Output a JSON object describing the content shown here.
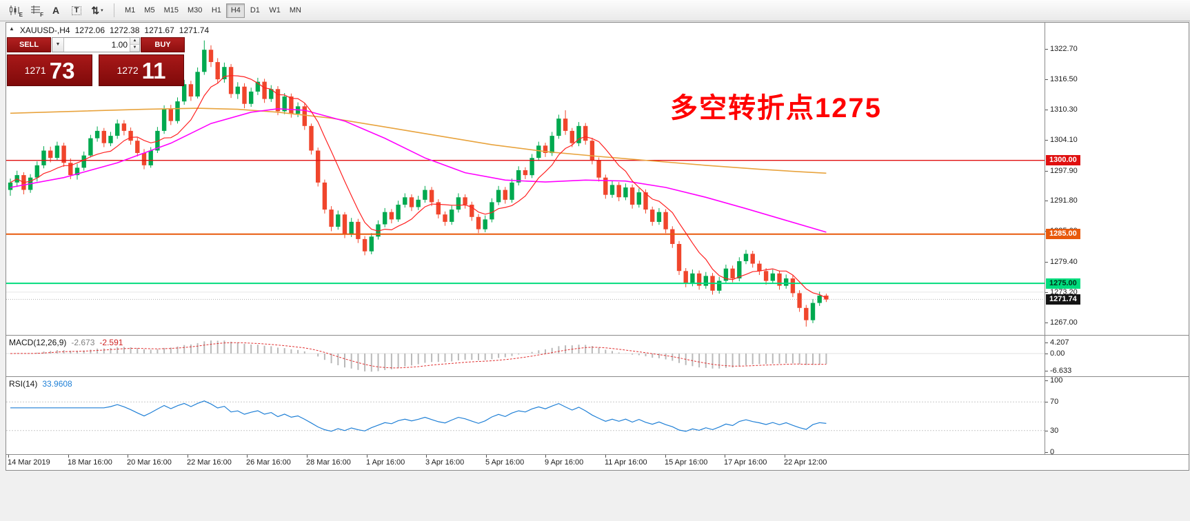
{
  "toolbar": {
    "icons": [
      {
        "name": "candlestick-chart-icon",
        "badge": "E"
      },
      {
        "name": "indicator-grid-icon",
        "badge": "F"
      },
      {
        "name": "text-label-icon",
        "glyph": "A"
      },
      {
        "name": "text-box-icon",
        "glyph": "T"
      },
      {
        "name": "cursor-tool-icon",
        "glyph": "⇅",
        "caret": "▾"
      }
    ],
    "timeframes": [
      "M1",
      "M5",
      "M15",
      "M30",
      "H1",
      "H4",
      "D1",
      "W1",
      "MN"
    ],
    "active_timeframe": "H4"
  },
  "chart_header": {
    "collapse_glyph": "▲",
    "symbol": "XAUUSD-,H4",
    "open": "1272.06",
    "high": "1272.38",
    "low": "1271.67",
    "close": "1271.74"
  },
  "trade_panel": {
    "sell_label": "SELL",
    "buy_label": "BUY",
    "volume": "1.00",
    "dropdown_glyph": "▼",
    "spinner_up": "▲",
    "spinner_down": "▼",
    "sell_price": {
      "small": "1271",
      "big": "73"
    },
    "buy_price": {
      "small": "1272",
      "big": "11"
    }
  },
  "annotation": {
    "text": "多空转折点1275",
    "color": "#ff0000"
  },
  "chart_data": {
    "type": "candlestick",
    "symbol": "XAUUSD",
    "timeframe": "H4",
    "title": "XAUUSD-,H4 1272.06 1272.38 1271.67 1271.74",
    "colors": {
      "bull": "#00a94f",
      "bear": "#f0452c",
      "ma_orange": "#e8a33d",
      "ma_magenta": "#ff00ff",
      "ma_red": "#ff2020",
      "macd_hist": "#b9b9b9",
      "macd_signal": "#e03030",
      "rsi_line": "#1e7fd6",
      "grid": "#e6e6e6",
      "bid_line": "#b0b0b0"
    },
    "price_axis": {
      "min": 1264.5,
      "max": 1328.0,
      "ticks": [
        {
          "label": "1322.70",
          "price": 1322.7
        },
        {
          "label": "1316.50",
          "price": 1316.5
        },
        {
          "label": "1310.30",
          "price": 1310.3
        },
        {
          "label": "1304.10",
          "price": 1304.1
        },
        {
          "label": "1297.90",
          "price": 1297.9
        },
        {
          "label": "1291.80",
          "price": 1291.8
        },
        {
          "label": "1285.60",
          "price": 1285.6
        },
        {
          "label": "1279.40",
          "price": 1279.4
        },
        {
          "label": "1273.20",
          "price": 1273.2
        },
        {
          "label": "1267.00",
          "price": 1267.0
        }
      ]
    },
    "price_tags": [
      {
        "label": "1300.00",
        "price": 1300.0,
        "bg": "#e01010",
        "fg": "#ffffff"
      },
      {
        "label": "1285.00",
        "price": 1285.0,
        "bg": "#e8590c",
        "fg": "#ffffff"
      },
      {
        "label": "1275.00",
        "price": 1275.0,
        "bg": "#00dc7d",
        "fg": "#00331c"
      },
      {
        "label": "1271.74",
        "price": 1271.74,
        "bg": "#141414",
        "fg": "#ffffff"
      }
    ],
    "hlines": [
      {
        "price": 1300.0,
        "color": "#e01010",
        "width": 1.3
      },
      {
        "price": 1285.0,
        "color": "#e8590c",
        "width": 2
      },
      {
        "price": 1275.0,
        "color": "#00dc7d",
        "width": 2
      }
    ],
    "grid_lines": [
      1273.2
    ],
    "bid_line": 1271.74,
    "red_ma_period": 8,
    "ma_orange": [
      [
        0,
        1309.6
      ],
      [
        10,
        1310.0
      ],
      [
        20,
        1310.4
      ],
      [
        28,
        1310.6
      ],
      [
        34,
        1310.4
      ],
      [
        40,
        1309.8
      ],
      [
        48,
        1308.6
      ],
      [
        56,
        1306.8
      ],
      [
        64,
        1305.0
      ],
      [
        72,
        1303.2
      ],
      [
        80,
        1301.8
      ],
      [
        88,
        1300.8
      ],
      [
        96,
        1299.9
      ],
      [
        104,
        1299.0
      ],
      [
        112,
        1298.2
      ],
      [
        118,
        1297.7
      ],
      [
        122,
        1297.4
      ]
    ],
    "ma_magenta": [
      [
        0,
        1294.5
      ],
      [
        8,
        1296.5
      ],
      [
        16,
        1299.5
      ],
      [
        24,
        1303.5
      ],
      [
        30,
        1307.5
      ],
      [
        36,
        1309.8
      ],
      [
        40,
        1310.5
      ],
      [
        44,
        1310.2
      ],
      [
        50,
        1308.0
      ],
      [
        56,
        1304.5
      ],
      [
        62,
        1300.5
      ],
      [
        68,
        1297.5
      ],
      [
        74,
        1296.0
      ],
      [
        80,
        1295.6
      ],
      [
        86,
        1296.0
      ],
      [
        92,
        1295.8
      ],
      [
        98,
        1294.5
      ],
      [
        104,
        1292.5
      ],
      [
        110,
        1290.2
      ],
      [
        116,
        1287.8
      ],
      [
        122,
        1285.4
      ]
    ],
    "candles": [
      [
        1294.0,
        1296.3,
        1292.8,
        1295.5
      ],
      [
        1295.5,
        1297.9,
        1294.6,
        1297.0
      ],
      [
        1297.0,
        1297.6,
        1293.1,
        1294.0
      ],
      [
        1294.0,
        1297.2,
        1293.4,
        1296.5
      ],
      [
        1296.5,
        1299.8,
        1295.7,
        1299.0
      ],
      [
        1299.0,
        1302.9,
        1298.4,
        1302.0
      ],
      [
        1302.0,
        1302.8,
        1299.6,
        1300.5
      ],
      [
        1300.5,
        1303.8,
        1300.0,
        1303.0
      ],
      [
        1303.0,
        1303.6,
        1298.7,
        1299.5
      ],
      [
        1299.5,
        1300.4,
        1296.2,
        1297.0
      ],
      [
        1297.0,
        1299.3,
        1296.1,
        1298.5
      ],
      [
        1298.5,
        1301.8,
        1297.9,
        1301.0
      ],
      [
        1301.0,
        1305.2,
        1300.6,
        1304.5
      ],
      [
        1304.5,
        1306.9,
        1303.8,
        1306.0
      ],
      [
        1306.0,
        1306.6,
        1302.7,
        1303.5
      ],
      [
        1303.5,
        1305.8,
        1302.9,
        1305.0
      ],
      [
        1305.0,
        1308.3,
        1304.4,
        1307.5
      ],
      [
        1307.5,
        1308.2,
        1305.1,
        1306.0
      ],
      [
        1306.0,
        1306.7,
        1303.2,
        1304.0
      ],
      [
        1304.0,
        1304.6,
        1300.8,
        1301.5
      ],
      [
        1301.5,
        1302.3,
        1298.2,
        1299.0
      ],
      [
        1299.0,
        1302.7,
        1298.5,
        1302.0
      ],
      [
        1302.0,
        1306.8,
        1301.5,
        1306.0
      ],
      [
        1306.0,
        1311.2,
        1305.4,
        1310.5
      ],
      [
        1310.5,
        1311.3,
        1307.2,
        1308.0
      ],
      [
        1308.0,
        1312.8,
        1307.5,
        1312.0
      ],
      [
        1312.0,
        1316.4,
        1311.3,
        1315.5
      ],
      [
        1315.5,
        1316.2,
        1312.1,
        1313.0
      ],
      [
        1313.0,
        1318.9,
        1312.6,
        1318.0
      ],
      [
        1318.0,
        1324.4,
        1317.4,
        1322.5
      ],
      [
        1322.5,
        1323.4,
        1319.0,
        1320.0
      ],
      [
        1320.0,
        1320.8,
        1315.6,
        1316.5
      ],
      [
        1316.5,
        1319.9,
        1315.8,
        1319.0
      ],
      [
        1319.0,
        1319.6,
        1312.7,
        1313.5
      ],
      [
        1313.5,
        1315.9,
        1312.5,
        1315.0
      ],
      [
        1315.0,
        1315.7,
        1310.6,
        1311.5
      ],
      [
        1311.5,
        1314.8,
        1310.9,
        1314.0
      ],
      [
        1314.0,
        1316.8,
        1313.3,
        1316.0
      ],
      [
        1316.0,
        1316.6,
        1311.7,
        1312.5
      ],
      [
        1312.5,
        1315.3,
        1311.9,
        1314.5
      ],
      [
        1314.5,
        1315.1,
        1309.2,
        1310.0
      ],
      [
        1310.0,
        1313.7,
        1309.4,
        1313.0
      ],
      [
        1313.0,
        1313.6,
        1308.7,
        1309.5
      ],
      [
        1309.5,
        1311.8,
        1308.8,
        1311.0
      ],
      [
        1311.0,
        1311.6,
        1306.2,
        1307.0
      ],
      [
        1307.0,
        1307.5,
        1301.2,
        1302.0
      ],
      [
        1302.0,
        1302.6,
        1294.7,
        1295.5
      ],
      [
        1295.5,
        1296.1,
        1289.2,
        1290.0
      ],
      [
        1290.0,
        1290.7,
        1285.6,
        1286.5
      ],
      [
        1286.5,
        1289.8,
        1285.9,
        1289.0
      ],
      [
        1289.0,
        1289.5,
        1284.2,
        1285.0
      ],
      [
        1285.0,
        1288.3,
        1284.4,
        1287.5
      ],
      [
        1287.5,
        1288.1,
        1283.2,
        1284.0
      ],
      [
        1284.0,
        1284.6,
        1280.7,
        1281.5
      ],
      [
        1281.5,
        1285.2,
        1280.9,
        1284.5
      ],
      [
        1284.5,
        1287.8,
        1283.9,
        1287.0
      ],
      [
        1287.0,
        1290.3,
        1286.4,
        1289.5
      ],
      [
        1289.5,
        1290.1,
        1287.2,
        1288.0
      ],
      [
        1288.0,
        1291.8,
        1287.5,
        1291.0
      ],
      [
        1291.0,
        1293.3,
        1290.4,
        1292.5
      ],
      [
        1292.5,
        1293.1,
        1289.7,
        1290.5
      ],
      [
        1290.5,
        1292.8,
        1289.9,
        1292.0
      ],
      [
        1292.0,
        1294.8,
        1291.4,
        1294.0
      ],
      [
        1294.0,
        1294.6,
        1290.7,
        1291.5
      ],
      [
        1291.5,
        1292.1,
        1288.2,
        1289.0
      ],
      [
        1289.0,
        1289.6,
        1286.7,
        1287.5
      ],
      [
        1287.5,
        1290.8,
        1286.9,
        1290.0
      ],
      [
        1290.0,
        1293.3,
        1289.4,
        1292.5
      ],
      [
        1292.5,
        1293.1,
        1290.2,
        1291.0
      ],
      [
        1291.0,
        1291.6,
        1287.7,
        1288.5
      ],
      [
        1288.5,
        1289.1,
        1285.2,
        1286.0
      ],
      [
        1286.0,
        1288.8,
        1285.4,
        1288.0
      ],
      [
        1288.0,
        1292.3,
        1287.4,
        1291.5
      ],
      [
        1291.5,
        1294.8,
        1290.9,
        1294.0
      ],
      [
        1294.0,
        1294.6,
        1291.2,
        1292.0
      ],
      [
        1292.0,
        1296.3,
        1291.4,
        1295.5
      ],
      [
        1295.5,
        1298.8,
        1294.9,
        1298.0
      ],
      [
        1298.0,
        1298.6,
        1296.2,
        1297.0
      ],
      [
        1297.0,
        1301.3,
        1296.4,
        1300.5
      ],
      [
        1300.5,
        1303.8,
        1299.9,
        1303.0
      ],
      [
        1303.0,
        1303.6,
        1300.7,
        1301.5
      ],
      [
        1301.5,
        1305.8,
        1300.9,
        1305.0
      ],
      [
        1305.0,
        1309.3,
        1304.4,
        1308.5
      ],
      [
        1308.5,
        1310.2,
        1305.2,
        1306.0
      ],
      [
        1306.0,
        1306.6,
        1302.7,
        1303.5
      ],
      [
        1303.5,
        1307.8,
        1302.9,
        1307.0
      ],
      [
        1307.0,
        1307.6,
        1303.2,
        1304.0
      ],
      [
        1304.0,
        1304.6,
        1299.2,
        1300.0
      ],
      [
        1300.0,
        1300.6,
        1295.7,
        1296.5
      ],
      [
        1296.5,
        1297.1,
        1292.2,
        1293.0
      ],
      [
        1293.0,
        1295.8,
        1292.4,
        1295.0
      ],
      [
        1295.0,
        1295.6,
        1291.7,
        1292.5
      ],
      [
        1292.5,
        1295.3,
        1291.9,
        1294.5
      ],
      [
        1294.5,
        1295.1,
        1290.2,
        1291.0
      ],
      [
        1291.0,
        1294.3,
        1290.4,
        1293.5
      ],
      [
        1293.5,
        1294.1,
        1289.2,
        1290.0
      ],
      [
        1290.0,
        1290.6,
        1286.7,
        1287.5
      ],
      [
        1287.5,
        1290.3,
        1286.9,
        1289.5
      ],
      [
        1289.5,
        1290.1,
        1285.2,
        1286.0
      ],
      [
        1286.0,
        1286.6,
        1282.2,
        1283.0
      ],
      [
        1283.0,
        1283.6,
        1276.7,
        1277.5
      ],
      [
        1277.5,
        1278.1,
        1274.2,
        1275.0
      ],
      [
        1275.0,
        1277.8,
        1274.4,
        1277.0
      ],
      [
        1277.0,
        1277.6,
        1273.7,
        1274.5
      ],
      [
        1274.5,
        1277.3,
        1273.9,
        1276.5
      ],
      [
        1276.5,
        1277.1,
        1272.7,
        1273.5
      ],
      [
        1273.5,
        1276.3,
        1272.9,
        1275.5
      ],
      [
        1275.5,
        1278.8,
        1274.9,
        1278.0
      ],
      [
        1278.0,
        1278.6,
        1275.2,
        1276.0
      ],
      [
        1276.0,
        1280.3,
        1275.4,
        1279.5
      ],
      [
        1279.5,
        1281.8,
        1278.9,
        1281.0
      ],
      [
        1281.0,
        1281.6,
        1278.2,
        1279.0
      ],
      [
        1279.0,
        1279.6,
        1276.7,
        1277.5
      ],
      [
        1277.5,
        1278.1,
        1274.7,
        1275.5
      ],
      [
        1275.5,
        1277.8,
        1274.9,
        1277.0
      ],
      [
        1277.0,
        1277.6,
        1273.7,
        1274.5
      ],
      [
        1274.5,
        1276.8,
        1273.9,
        1276.0
      ],
      [
        1276.0,
        1276.6,
        1272.2,
        1273.0
      ],
      [
        1273.0,
        1273.6,
        1269.2,
        1270.0
      ],
      [
        1270.0,
        1270.6,
        1266.2,
        1267.5
      ],
      [
        1267.5,
        1271.8,
        1266.9,
        1271.0
      ],
      [
        1271.0,
        1273.3,
        1270.4,
        1272.5
      ],
      [
        1272.5,
        1272.9,
        1271.2,
        1271.7
      ]
    ],
    "time_labels": [
      "14 Mar 2019",
      "18 Mar 16:00",
      "20 Mar 16:00",
      "22 Mar 16:00",
      "26 Mar 16:00",
      "28 Mar 16:00",
      "1 Apr 16:00",
      "3 Apr 16:00",
      "5 Apr 16:00",
      "9 Apr 16:00",
      "11 Apr 16:00",
      "15 Apr 16:00",
      "17 Apr 16:00",
      "22 Apr 12:00"
    ],
    "indicators": {
      "macd": {
        "label": "MACD(12,26,9)",
        "display1": "-2.673",
        "display2": "-2.591",
        "fast": 12,
        "slow": 26,
        "signal": 9,
        "range": [
          -8.9,
          7.0
        ],
        "scale": [
          {
            "label": "4.207",
            "value": 4.207
          },
          {
            "label": "0.00",
            "value": 0
          },
          {
            "label": "-6.633",
            "value": -6.633
          }
        ]
      },
      "rsi": {
        "label": "RSI(14)",
        "display": "33.9608",
        "period": 14,
        "levels": [
          70,
          30
        ],
        "scale": [
          {
            "label": "100",
            "value": 100
          },
          {
            "label": "70",
            "value": 70
          },
          {
            "label": "30",
            "value": 30
          },
          {
            "label": "0",
            "value": 0
          }
        ]
      }
    }
  }
}
